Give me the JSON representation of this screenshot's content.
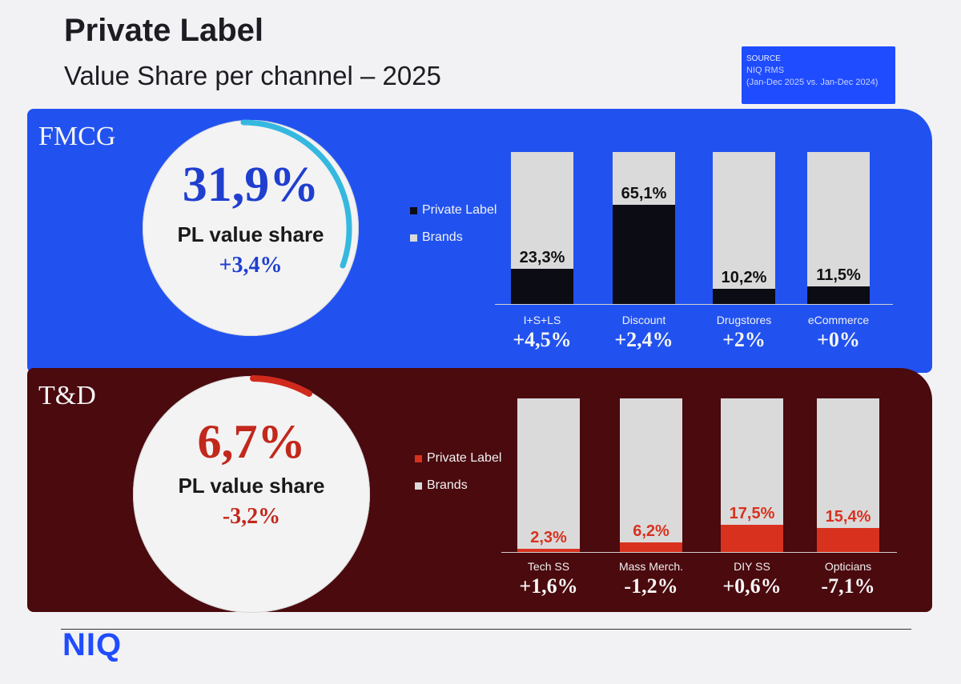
{
  "header": {
    "title": "Private Label",
    "subtitle": "Value Share per channel – 2025"
  },
  "source": {
    "label": "SOURCE",
    "line1": "NIQ RMS",
    "line2": "(Jan-Dec 2025 vs. Jan-Dec 2024)"
  },
  "fmcg": {
    "panel_label": "FMCG",
    "pl_value_share": "31,9%",
    "pl_value_share_label": "PL value share",
    "pl_change": "+3,4%",
    "legend": [
      "Private Label",
      "Brands"
    ],
    "categories": [
      "I+S+LS",
      "Discount",
      "Drugstores",
      "eCommerce"
    ],
    "value_labels": [
      "23,3%",
      "65,1%",
      "10,2%",
      "11,5%"
    ],
    "deltas": [
      "+4,5%",
      "+2,4%",
      "+2%",
      "+0%"
    ]
  },
  "td": {
    "panel_label": "T&D",
    "pl_value_share": "6,7%",
    "pl_value_share_label": "PL value share",
    "pl_change": "-3,2%",
    "legend": [
      "Private Label",
      "Brands"
    ],
    "categories": [
      "Tech SS",
      "Mass Merch.",
      "DIY SS",
      "Opticians"
    ],
    "value_labels": [
      "2,3%",
      "6,2%",
      "17,5%",
      "15,4%"
    ],
    "deltas": [
      "+1,6%",
      "-1,2%",
      "+0,6%",
      "-7,1%"
    ]
  },
  "footer": {
    "logo": "NIQ"
  },
  "colors": {
    "fmcg_panel": "#2152f0",
    "td_panel": "#4a0a0e",
    "fmcg_pl": "#0c0c14",
    "td_pl": "#d8321f",
    "brands": "#dadada",
    "fmcg_accent": "#1f3fcf",
    "fmcg_arc": "#35b8e0",
    "td_accent": "#c2281c"
  },
  "chart_data": [
    {
      "type": "bar",
      "title": "FMCG",
      "categories": [
        "I+S+LS",
        "Discount",
        "Drugstores",
        "eCommerce"
      ],
      "series": [
        {
          "name": "Private Label",
          "values": [
            23.3,
            65.1,
            10.2,
            11.5
          ]
        },
        {
          "name": "Brands",
          "values": [
            76.7,
            34.9,
            89.8,
            88.5
          ]
        }
      ],
      "stacked": true,
      "ylim": [
        0,
        100
      ],
      "legend": "left",
      "grid": false
    },
    {
      "type": "bar",
      "title": "T&D",
      "categories": [
        "Tech SS",
        "Mass Merch.",
        "DIY SS",
        "Opticians"
      ],
      "series": [
        {
          "name": "Private Label",
          "values": [
            2.3,
            6.2,
            17.5,
            15.4
          ]
        },
        {
          "name": "Brands",
          "values": [
            97.7,
            93.8,
            82.5,
            84.6
          ]
        }
      ],
      "stacked": true,
      "ylim": [
        0,
        100
      ],
      "legend": "left",
      "grid": false
    }
  ]
}
